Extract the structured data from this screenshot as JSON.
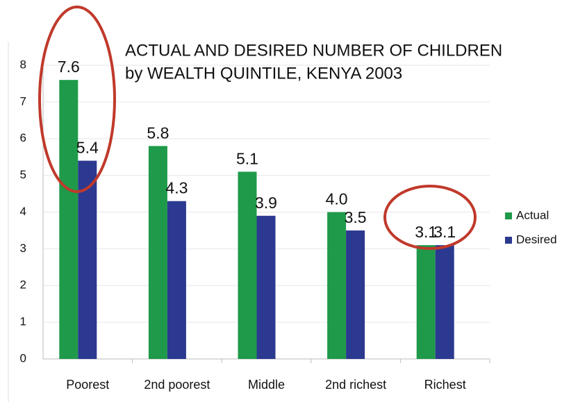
{
  "chart_data": {
    "type": "bar",
    "title": "ACTUAL AND DESIRED NUMBER OF CHILDREN",
    "subtitle": "by WEALTH QUINTILE, KENYA 2003",
    "categories": [
      "Poorest",
      "2nd poorest",
      "Middle",
      "2nd richest",
      "Richest"
    ],
    "series": [
      {
        "name": "Actual",
        "color": "#1f9a4a",
        "values": [
          7.6,
          5.8,
          5.1,
          4,
          3.1
        ],
        "value_labels": [
          "7.6",
          "5.8",
          "5.1",
          "4.0",
          "3.1"
        ]
      },
      {
        "name": "Desired",
        "color": "#2b3990",
        "values": [
          5.4,
          4.3,
          3.9,
          3.5,
          3.1
        ],
        "value_labels": [
          "5.4",
          "4.3",
          "3.9",
          "3.5",
          "3.1"
        ]
      }
    ],
    "ylim": [
      0,
      8
    ],
    "yticks": [
      0,
      1,
      2,
      3,
      4,
      5,
      6,
      7,
      8
    ],
    "grid": true,
    "legend": "right"
  }
}
